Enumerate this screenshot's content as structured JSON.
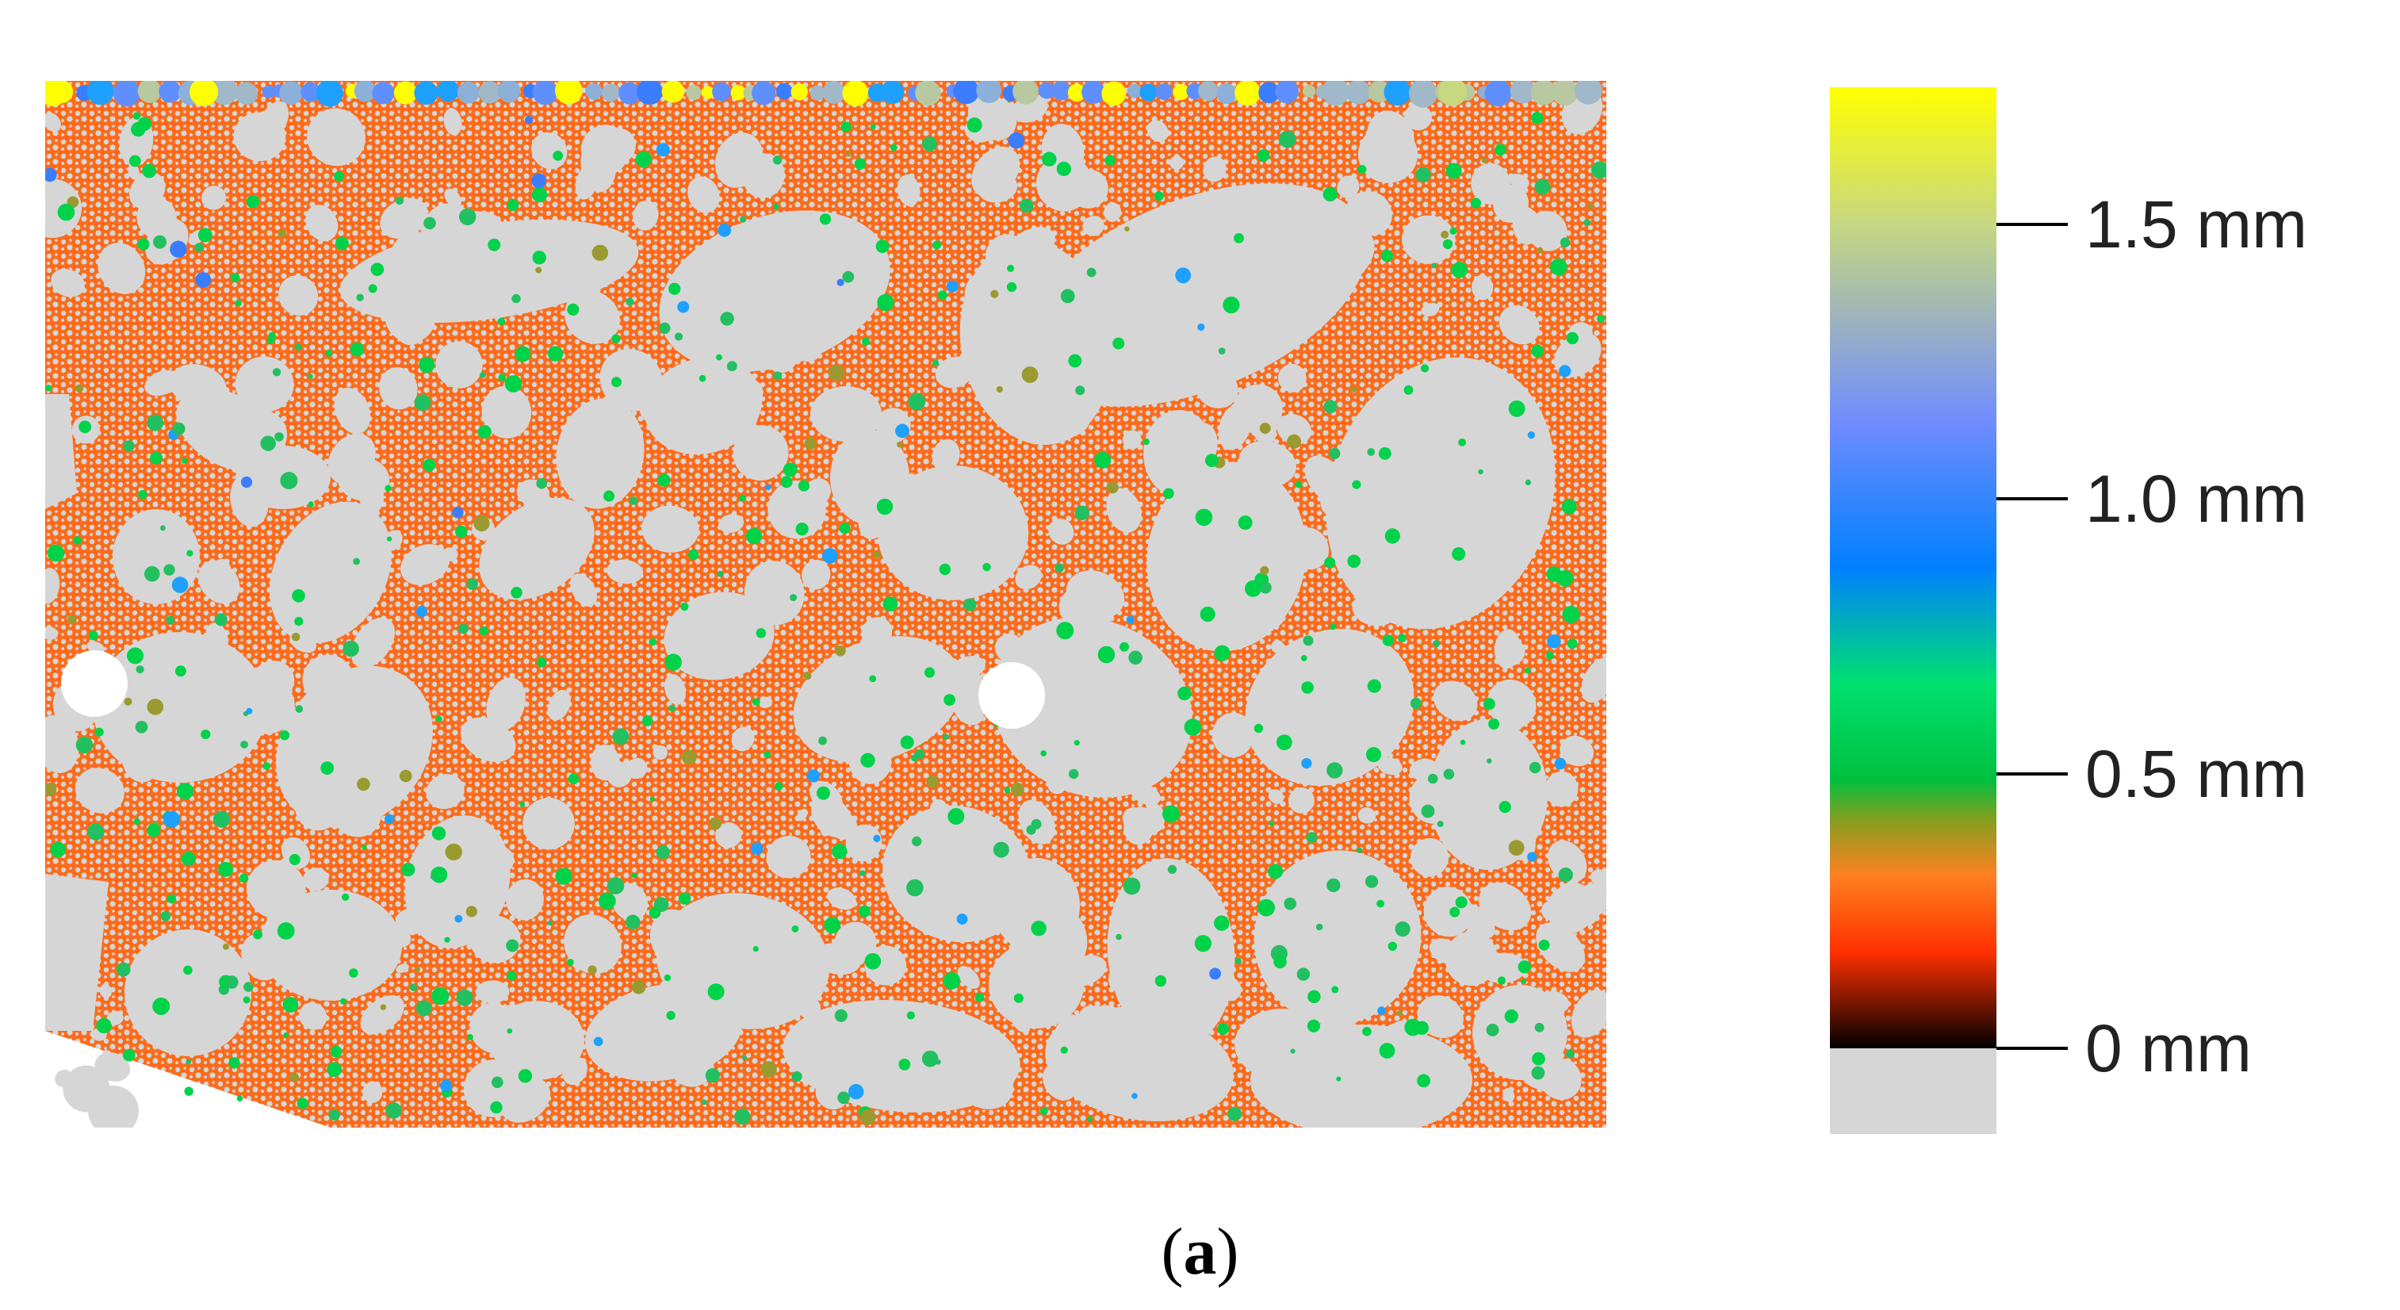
{
  "figure": {
    "caption_open": "(",
    "caption_letter": "a",
    "caption_close": ")"
  },
  "colorbar": {
    "colors": {
      "top": "#ffff00",
      "upper": "#6f8cff",
      "blue": "#0080ff",
      "green": "#00c040",
      "olive": "#80a020",
      "orange": "#ff8020",
      "red": "#ff3000",
      "black": "#000000",
      "zero_block": "#d6d6d6"
    },
    "ticks": [
      {
        "label": "1.5 mm",
        "value": 1.5
      },
      {
        "label": "1.0 mm",
        "value": 1.0
      },
      {
        "label": "0.5 mm",
        "value": 0.5
      },
      {
        "label": "0 mm",
        "value": 0
      }
    ],
    "max_value": 1.75
  },
  "micrograph": {
    "matrix_color": "#ff6a1a",
    "aggregate_color": "#d6d6d6",
    "pore_colors": [
      "#00d24a",
      "#22c060",
      "#1ea0ff",
      "#3a7dff",
      "#9a9a30"
    ]
  }
}
